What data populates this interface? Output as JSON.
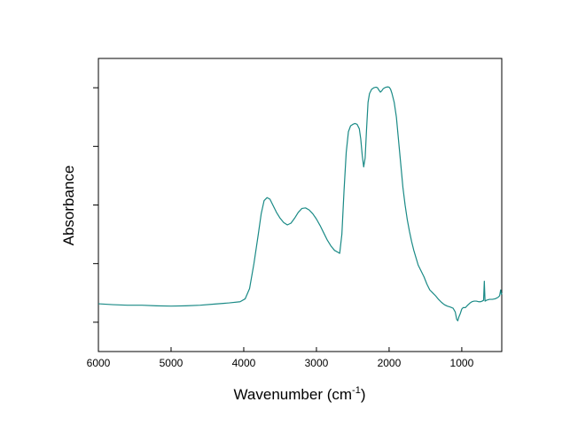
{
  "chart_data": {
    "type": "line",
    "title": "",
    "xlabel": "Wavenumber (cm",
    "xlabel_sup": "-1",
    "xlabel_suffix": ")",
    "ylabel": "Absorbance",
    "xlim": [
      6000,
      450
    ],
    "x_reversed": true,
    "ylim": [
      0,
      1
    ],
    "y_tick_labels": false,
    "x_ticks": [
      6000,
      5000,
      4000,
      3000,
      2000,
      1000
    ],
    "x_tick_labels": [
      "6000",
      "5000",
      "4000",
      "3000",
      "2000",
      "1000"
    ],
    "y_ticks": [
      0.1,
      0.3,
      0.5,
      0.7,
      0.9
    ],
    "grid": false,
    "legend": "none",
    "line_color": "#1a8a86",
    "series": [
      {
        "name": "",
        "points": [
          [
            6000,
            0.163
          ],
          [
            5800,
            0.16
          ],
          [
            5600,
            0.158
          ],
          [
            5400,
            0.158
          ],
          [
            5200,
            0.156
          ],
          [
            5000,
            0.155
          ],
          [
            4800,
            0.156
          ],
          [
            4600,
            0.158
          ],
          [
            4400,
            0.162
          ],
          [
            4200,
            0.166
          ],
          [
            4050,
            0.17
          ],
          [
            3980,
            0.18
          ],
          [
            3920,
            0.215
          ],
          [
            3860,
            0.3
          ],
          [
            3800,
            0.4
          ],
          [
            3760,
            0.47
          ],
          [
            3720,
            0.515
          ],
          [
            3680,
            0.525
          ],
          [
            3640,
            0.52
          ],
          [
            3600,
            0.5
          ],
          [
            3550,
            0.475
          ],
          [
            3500,
            0.455
          ],
          [
            3450,
            0.44
          ],
          [
            3400,
            0.432
          ],
          [
            3350,
            0.438
          ],
          [
            3300,
            0.455
          ],
          [
            3250,
            0.475
          ],
          [
            3200,
            0.488
          ],
          [
            3150,
            0.49
          ],
          [
            3100,
            0.483
          ],
          [
            3050,
            0.47
          ],
          [
            3000,
            0.452
          ],
          [
            2950,
            0.43
          ],
          [
            2900,
            0.405
          ],
          [
            2850,
            0.38
          ],
          [
            2800,
            0.36
          ],
          [
            2750,
            0.345
          ],
          [
            2700,
            0.338
          ],
          [
            2680,
            0.335
          ],
          [
            2650,
            0.4
          ],
          [
            2620,
            0.55
          ],
          [
            2590,
            0.68
          ],
          [
            2560,
            0.75
          ],
          [
            2530,
            0.77
          ],
          [
            2500,
            0.775
          ],
          [
            2470,
            0.778
          ],
          [
            2440,
            0.775
          ],
          [
            2410,
            0.76
          ],
          [
            2390,
            0.725
          ],
          [
            2370,
            0.67
          ],
          [
            2350,
            0.63
          ],
          [
            2330,
            0.66
          ],
          [
            2310,
            0.76
          ],
          [
            2290,
            0.85
          ],
          [
            2270,
            0.88
          ],
          [
            2240,
            0.895
          ],
          [
            2210,
            0.9
          ],
          [
            2180,
            0.902
          ],
          [
            2160,
            0.9
          ],
          [
            2140,
            0.892
          ],
          [
            2120,
            0.885
          ],
          [
            2100,
            0.89
          ],
          [
            2080,
            0.897
          ],
          [
            2060,
            0.9
          ],
          [
            2040,
            0.902
          ],
          [
            2020,
            0.903
          ],
          [
            2000,
            0.902
          ],
          [
            1980,
            0.895
          ],
          [
            1960,
            0.88
          ],
          [
            1930,
            0.85
          ],
          [
            1900,
            0.8
          ],
          [
            1870,
            0.72
          ],
          [
            1840,
            0.64
          ],
          [
            1810,
            0.56
          ],
          [
            1780,
            0.5
          ],
          [
            1750,
            0.45
          ],
          [
            1720,
            0.41
          ],
          [
            1690,
            0.375
          ],
          [
            1660,
            0.345
          ],
          [
            1630,
            0.32
          ],
          [
            1600,
            0.295
          ],
          [
            1560,
            0.275
          ],
          [
            1520,
            0.255
          ],
          [
            1480,
            0.23
          ],
          [
            1440,
            0.21
          ],
          [
            1400,
            0.2
          ],
          [
            1360,
            0.19
          ],
          [
            1320,
            0.178
          ],
          [
            1280,
            0.168
          ],
          [
            1240,
            0.16
          ],
          [
            1200,
            0.155
          ],
          [
            1160,
            0.152
          ],
          [
            1120,
            0.148
          ],
          [
            1090,
            0.135
          ],
          [
            1070,
            0.11
          ],
          [
            1055,
            0.105
          ],
          [
            1040,
            0.118
          ],
          [
            1020,
            0.13
          ],
          [
            1000,
            0.145
          ],
          [
            980,
            0.15
          ],
          [
            950,
            0.15
          ],
          [
            920,
            0.158
          ],
          [
            890,
            0.165
          ],
          [
            860,
            0.17
          ],
          [
            830,
            0.172
          ],
          [
            800,
            0.172
          ],
          [
            770,
            0.17
          ],
          [
            740,
            0.17
          ],
          [
            720,
            0.172
          ],
          [
            700,
            0.175
          ],
          [
            690,
            0.24
          ],
          [
            680,
            0.172
          ],
          [
            660,
            0.175
          ],
          [
            620,
            0.178
          ],
          [
            580,
            0.178
          ],
          [
            540,
            0.18
          ],
          [
            500,
            0.185
          ],
          [
            480,
            0.19
          ],
          [
            465,
            0.21
          ],
          [
            455,
            0.195
          ],
          [
            450,
            0.2
          ]
        ]
      }
    ]
  }
}
